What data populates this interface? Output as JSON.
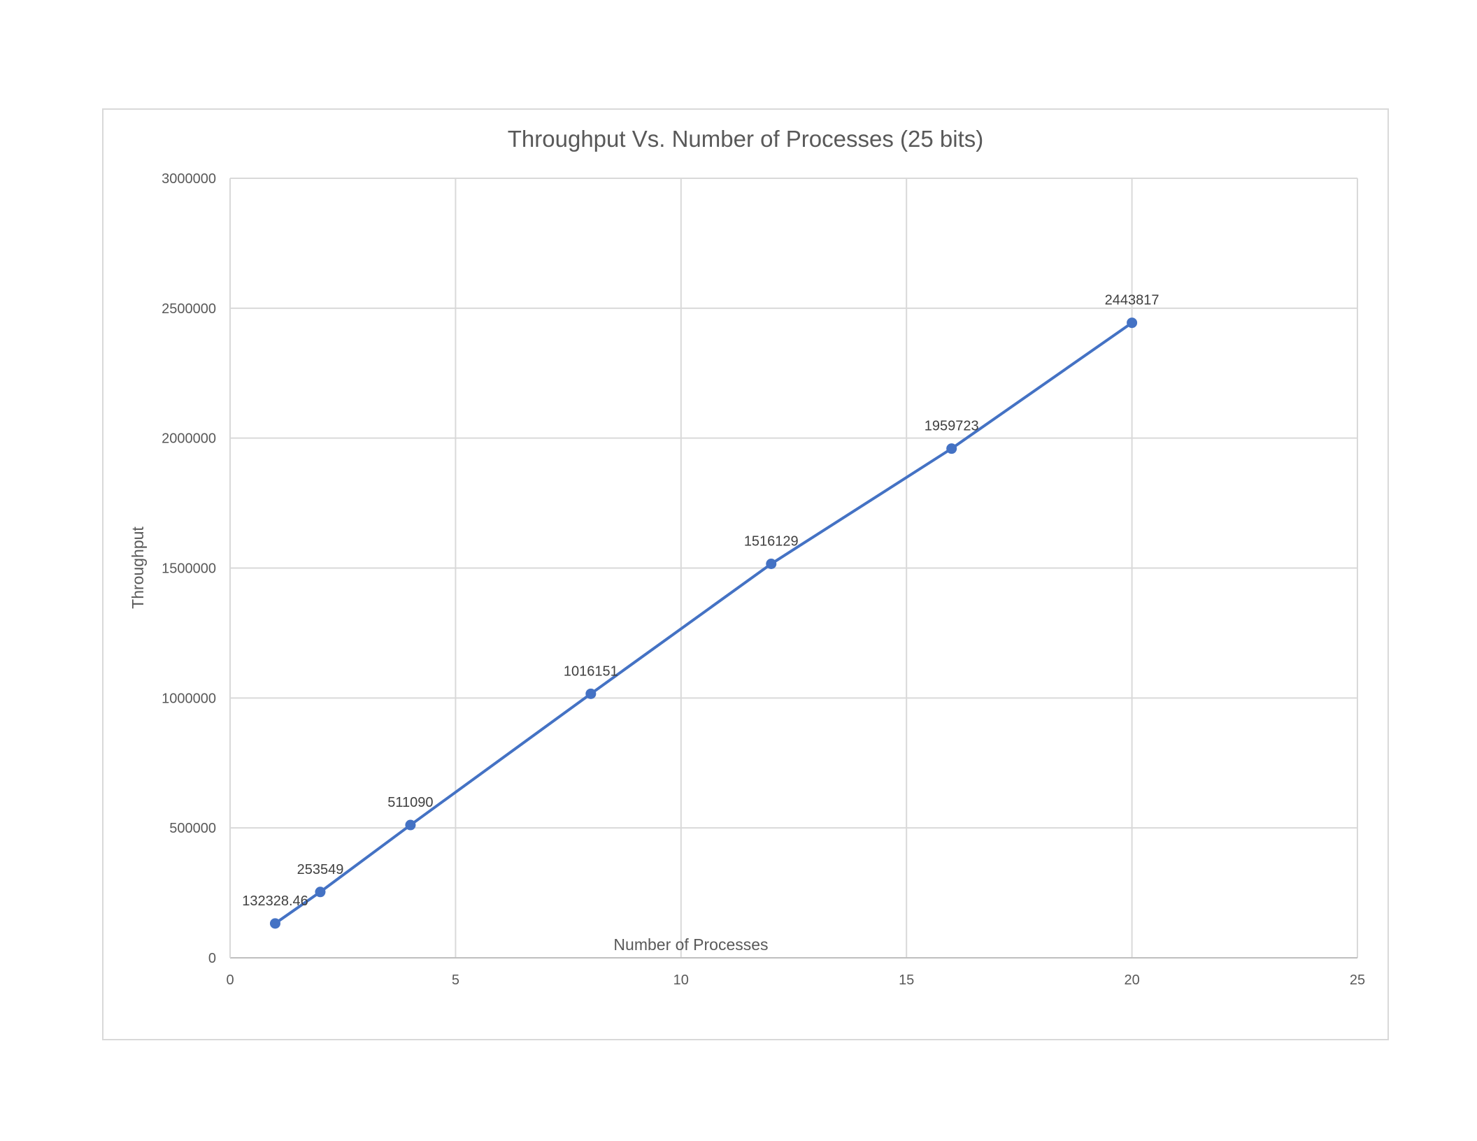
{
  "chart_data": {
    "type": "scatter",
    "title": "Throughput Vs. Number of Processes (25 bits)",
    "xlabel": "Number of Processes",
    "ylabel": "Throughput",
    "xlim": [
      0,
      25
    ],
    "ylim": [
      0,
      3000000
    ],
    "x_ticks": [
      "0",
      "5",
      "10",
      "15",
      "20",
      "25"
    ],
    "y_ticks": [
      "0",
      "500000",
      "1000000",
      "1500000",
      "2000000",
      "2500000",
      "3000000"
    ],
    "grid": true,
    "legend": "none",
    "line_color": "#4472c4",
    "series": [
      {
        "x": [
          1,
          2,
          4,
          8,
          12,
          16,
          20
        ],
        "values": [
          132328.46,
          253549,
          511090,
          1016151,
          1516129,
          1959723,
          2443817
        ],
        "labels": [
          "132328.46",
          "253549",
          "511090",
          "1016151",
          "1516129",
          "1959723",
          "2443817"
        ]
      }
    ]
  }
}
